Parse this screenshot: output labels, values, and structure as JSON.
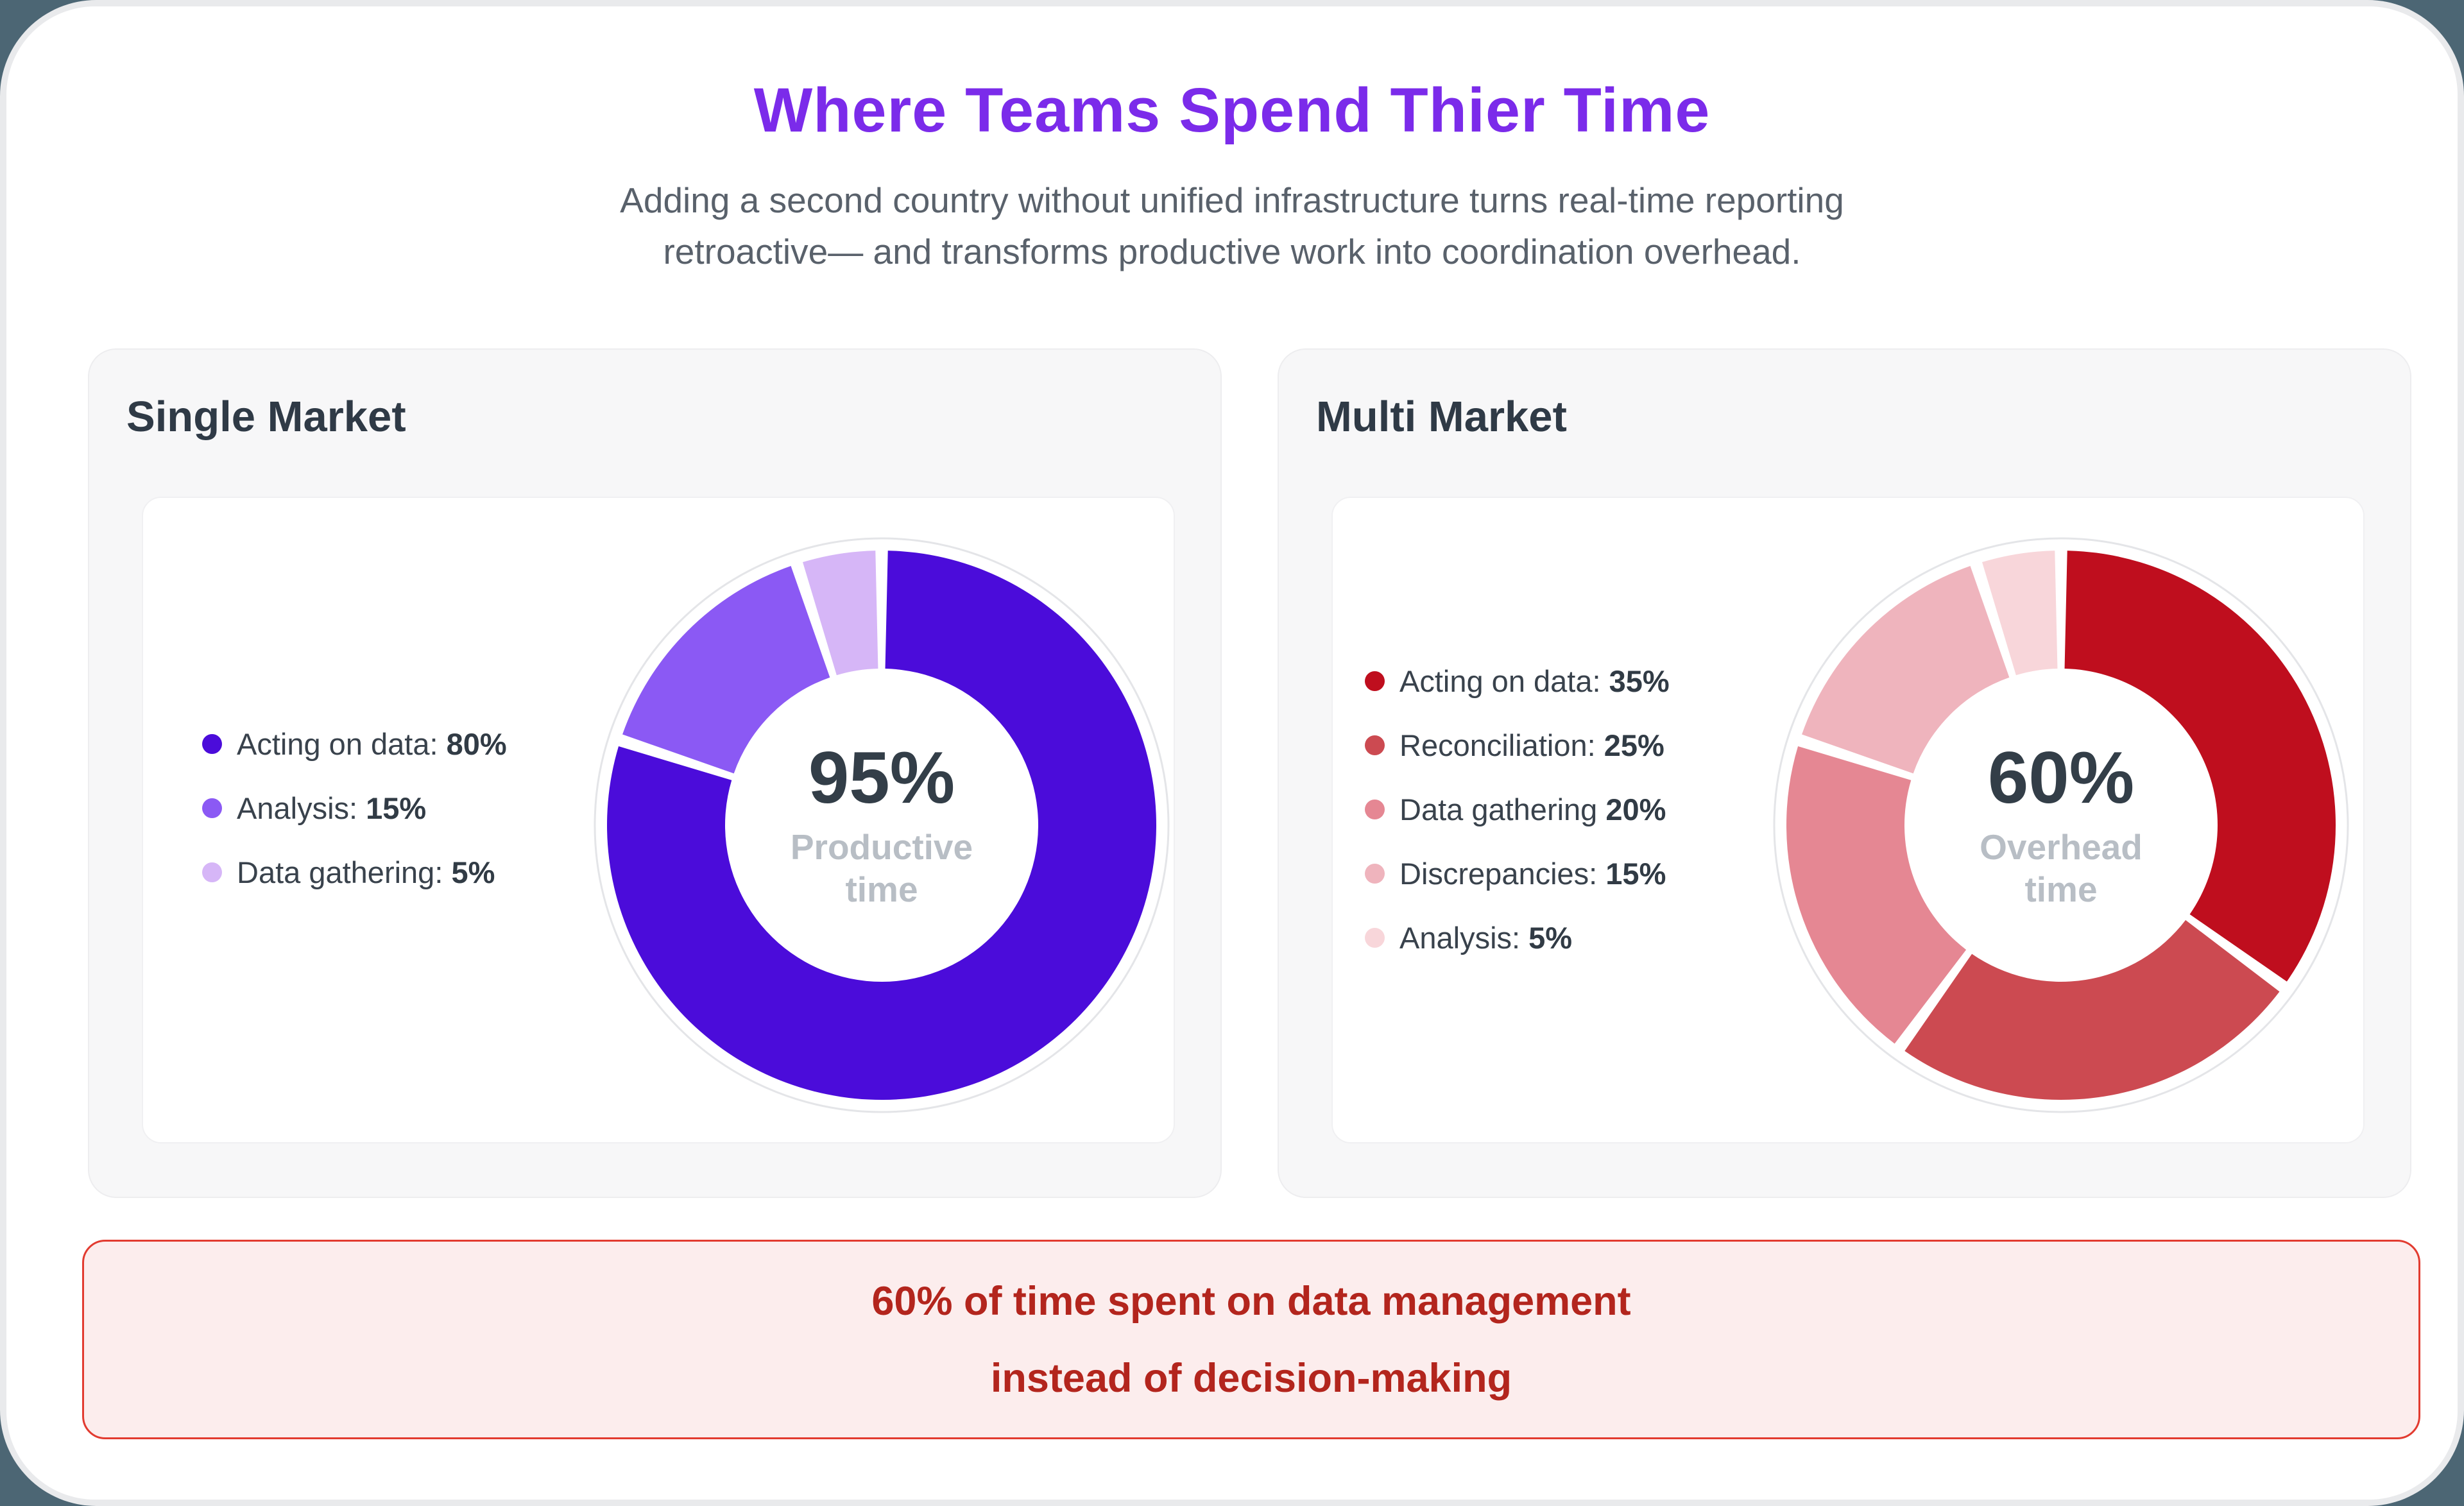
{
  "page": {
    "title": "Where Teams Spend Thier Time",
    "subtitle_line1": "Adding a second country without unified infrastructure turns real-time reporting",
    "subtitle_line2": "retroactive— and transforms productive work into coordination overhead.",
    "colors": {
      "page_background": "#4C6674",
      "card_background": "#F7F7F8",
      "title": "#7B2BEA",
      "subtitle": "#59616B",
      "heading": "#2F3A46",
      "banner_background": "#FCEDED",
      "banner_border": "#E23B30",
      "banner_text": "#B3251D"
    }
  },
  "chart_data": [
    {
      "type": "pie",
      "variant": "donut",
      "title": "Single Market",
      "center_value": "95%",
      "center_label": "Productive time",
      "legend_position": "left",
      "segments": [
        {
          "label": "Acting on data:",
          "pct": 80,
          "pct_text": "80%",
          "color": "#4B0CDA"
        },
        {
          "label": "Analysis:",
          "pct": 15,
          "pct_text": "15%",
          "color": "#8B59F4"
        },
        {
          "label": "Data gathering:",
          "pct": 5,
          "pct_text": "5%",
          "color": "#D6B6F7"
        }
      ]
    },
    {
      "type": "pie",
      "variant": "donut",
      "title": "Multi Market",
      "center_value": "60%",
      "center_label": "Overhead time",
      "legend_position": "left",
      "segments": [
        {
          "label": "Acting on data:",
          "pct": 35,
          "pct_text": "35%",
          "color": "#BF0E1E"
        },
        {
          "label": "Reconciliation:",
          "pct": 25,
          "pct_text": "25%",
          "color": "#CC4A51"
        },
        {
          "label": "Data gathering",
          "pct": 20,
          "pct_text": "20%",
          "color": "#E58793"
        },
        {
          "label": "Discrepancies:",
          "pct": 15,
          "pct_text": "15%",
          "color": "#EFB4BD"
        },
        {
          "label": "Analysis:",
          "pct": 5,
          "pct_text": "5%",
          "color": "#F8D6DA"
        }
      ]
    }
  ],
  "banner": {
    "line1": "60% of time spent on data management",
    "line2": "instead of decision-making"
  }
}
